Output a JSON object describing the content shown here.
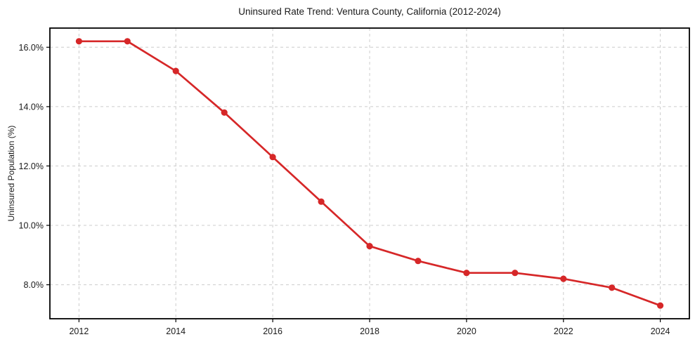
{
  "chart_data": {
    "type": "line",
    "title": "Uninsured Rate Trend: Ventura County, California (2012-2024)",
    "xlabel": "",
    "ylabel": "Uninsured Population (%)",
    "x": [
      2012,
      2013,
      2014,
      2015,
      2016,
      2017,
      2018,
      2019,
      2020,
      2021,
      2022,
      2023,
      2024
    ],
    "values": [
      16.2,
      16.2,
      15.2,
      13.8,
      12.3,
      10.8,
      9.3,
      8.8,
      8.4,
      8.4,
      8.2,
      7.9,
      7.3
    ],
    "xticks": {
      "values": [
        2012,
        2014,
        2016,
        2018,
        2020,
        2022,
        2024
      ],
      "labels": [
        "2012",
        "2014",
        "2016",
        "2018",
        "2020",
        "2022",
        "2024"
      ]
    },
    "yticks": {
      "values": [
        8,
        10,
        12,
        14,
        16
      ],
      "labels": [
        "8.0%",
        "10.0%",
        "12.0%",
        "14.0%",
        "16.0%"
      ]
    },
    "xlim": [
      2011.4,
      2024.6
    ],
    "ylim": [
      6.855,
      16.645
    ],
    "grid": true,
    "grid_style": "dashed",
    "legend": "none",
    "marker": "circle",
    "colors": {
      "line": "#d62728",
      "marker": "#d62728",
      "grid": "#cccccc",
      "spine": "#000000",
      "text": "#1a1a1a",
      "background": "#ffffff"
    }
  }
}
